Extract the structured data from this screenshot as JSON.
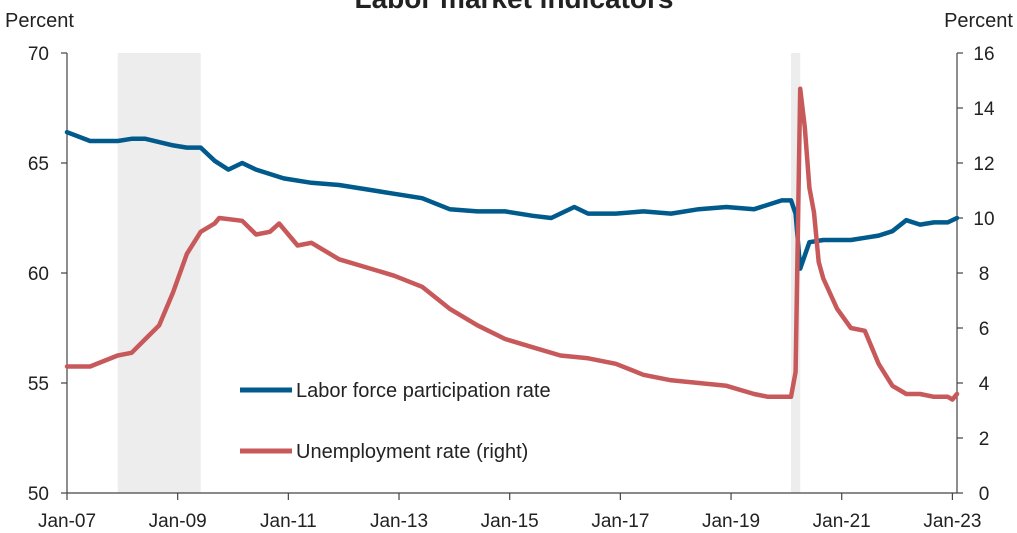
{
  "chart_data": {
    "type": "line",
    "title": "Labor market indicators",
    "left_unit": "Percent",
    "right_unit": "Percent",
    "x_range": [
      "2007-01",
      "2023-02"
    ],
    "x_ticks": [
      "Jan-07",
      "Jan-09",
      "Jan-11",
      "Jan-13",
      "Jan-15",
      "Jan-17",
      "Jan-19",
      "Jan-21",
      "Jan-23"
    ],
    "y_left": {
      "min": 50,
      "max": 70,
      "ticks": [
        "50",
        "55",
        "60",
        "65",
        "70"
      ]
    },
    "y_right": {
      "min": 0,
      "max": 16,
      "ticks": [
        "0",
        "2",
        "4",
        "6",
        "8",
        "10",
        "12",
        "14",
        "16"
      ]
    },
    "recessions": [
      {
        "start": "2007-12",
        "end": "2009-06"
      },
      {
        "start": "2020-02",
        "end": "2020-04"
      }
    ],
    "series": [
      {
        "name": "Labor force participation rate",
        "axis": "left",
        "color": "#005a8c",
        "points": [
          [
            "2007-01",
            66.4
          ],
          [
            "2007-06",
            66.0
          ],
          [
            "2007-12",
            66.0
          ],
          [
            "2008-03",
            66.1
          ],
          [
            "2008-06",
            66.1
          ],
          [
            "2008-12",
            65.8
          ],
          [
            "2009-03",
            65.7
          ],
          [
            "2009-06",
            65.7
          ],
          [
            "2009-09",
            65.1
          ],
          [
            "2009-12",
            64.7
          ],
          [
            "2010-03",
            65.0
          ],
          [
            "2010-06",
            64.7
          ],
          [
            "2010-12",
            64.3
          ],
          [
            "2011-06",
            64.1
          ],
          [
            "2011-12",
            64.0
          ],
          [
            "2012-06",
            63.8
          ],
          [
            "2012-12",
            63.6
          ],
          [
            "2013-06",
            63.4
          ],
          [
            "2013-12",
            62.9
          ],
          [
            "2014-06",
            62.8
          ],
          [
            "2014-12",
            62.8
          ],
          [
            "2015-06",
            62.6
          ],
          [
            "2015-10",
            62.5
          ],
          [
            "2016-03",
            63.0
          ],
          [
            "2016-06",
            62.7
          ],
          [
            "2016-12",
            62.7
          ],
          [
            "2017-06",
            62.8
          ],
          [
            "2017-12",
            62.7
          ],
          [
            "2018-06",
            62.9
          ],
          [
            "2018-12",
            63.0
          ],
          [
            "2019-06",
            62.9
          ],
          [
            "2019-12",
            63.3
          ],
          [
            "2020-02",
            63.3
          ],
          [
            "2020-03",
            62.7
          ],
          [
            "2020-04",
            60.2
          ],
          [
            "2020-06",
            61.4
          ],
          [
            "2020-09",
            61.5
          ],
          [
            "2020-12",
            61.5
          ],
          [
            "2021-03",
            61.5
          ],
          [
            "2021-06",
            61.6
          ],
          [
            "2021-09",
            61.7
          ],
          [
            "2021-12",
            61.9
          ],
          [
            "2022-03",
            62.4
          ],
          [
            "2022-06",
            62.2
          ],
          [
            "2022-09",
            62.3
          ],
          [
            "2022-12",
            62.3
          ],
          [
            "2023-02",
            62.5
          ]
        ]
      },
      {
        "name": "Unemployment rate (right)",
        "axis": "right",
        "color": "#c8595b",
        "points": [
          [
            "2007-01",
            4.6
          ],
          [
            "2007-06",
            4.6
          ],
          [
            "2007-12",
            5.0
          ],
          [
            "2008-03",
            5.1
          ],
          [
            "2008-06",
            5.6
          ],
          [
            "2008-09",
            6.1
          ],
          [
            "2008-12",
            7.3
          ],
          [
            "2009-03",
            8.7
          ],
          [
            "2009-06",
            9.5
          ],
          [
            "2009-09",
            9.8
          ],
          [
            "2009-10",
            10.0
          ],
          [
            "2010-03",
            9.9
          ],
          [
            "2010-06",
            9.4
          ],
          [
            "2010-09",
            9.5
          ],
          [
            "2010-11",
            9.8
          ],
          [
            "2011-03",
            9.0
          ],
          [
            "2011-06",
            9.1
          ],
          [
            "2011-12",
            8.5
          ],
          [
            "2012-06",
            8.2
          ],
          [
            "2012-12",
            7.9
          ],
          [
            "2013-06",
            7.5
          ],
          [
            "2013-12",
            6.7
          ],
          [
            "2014-06",
            6.1
          ],
          [
            "2014-12",
            5.6
          ],
          [
            "2015-06",
            5.3
          ],
          [
            "2015-12",
            5.0
          ],
          [
            "2016-06",
            4.9
          ],
          [
            "2016-12",
            4.7
          ],
          [
            "2017-06",
            4.3
          ],
          [
            "2017-12",
            4.1
          ],
          [
            "2018-06",
            4.0
          ],
          [
            "2018-12",
            3.9
          ],
          [
            "2019-06",
            3.6
          ],
          [
            "2019-09",
            3.5
          ],
          [
            "2020-02",
            3.5
          ],
          [
            "2020-03",
            4.4
          ],
          [
            "2020-04",
            14.7
          ],
          [
            "2020-05",
            13.3
          ],
          [
            "2020-06",
            11.1
          ],
          [
            "2020-07",
            10.2
          ],
          [
            "2020-08",
            8.4
          ],
          [
            "2020-09",
            7.8
          ],
          [
            "2020-12",
            6.7
          ],
          [
            "2021-03",
            6.0
          ],
          [
            "2021-06",
            5.9
          ],
          [
            "2021-09",
            4.7
          ],
          [
            "2021-12",
            3.9
          ],
          [
            "2022-03",
            3.6
          ],
          [
            "2022-06",
            3.6
          ],
          [
            "2022-09",
            3.5
          ],
          [
            "2022-12",
            3.5
          ],
          [
            "2023-01",
            3.4
          ],
          [
            "2023-02",
            3.6
          ]
        ]
      }
    ],
    "legend": [
      "Labor force participation rate",
      "Unemployment rate (right)"
    ],
    "legend_position": "center-left inside plot",
    "grid": false
  }
}
